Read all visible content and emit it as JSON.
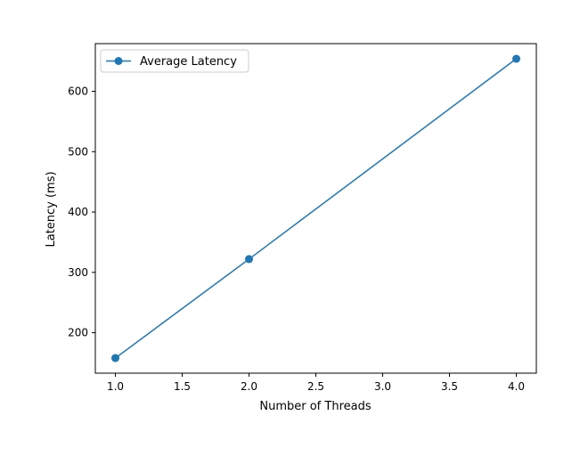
{
  "chart_data": {
    "type": "line",
    "x": [
      1.0,
      2.0,
      4.0
    ],
    "series": [
      {
        "name": "Average Latency",
        "values": [
          158,
          322,
          654
        ],
        "color": "#1f77b4",
        "marker": "circle"
      }
    ],
    "xlabel": "Number of Threads",
    "ylabel": "Latency (ms)",
    "xlim": [
      0.85,
      4.15
    ],
    "ylim": [
      133,
      679
    ],
    "xticks": [
      1.0,
      1.5,
      2.0,
      2.5,
      3.0,
      3.5,
      4.0
    ],
    "xtick_labels": [
      "1.0",
      "1.5",
      "2.0",
      "2.5",
      "3.0",
      "3.5",
      "4.0"
    ],
    "yticks": [
      200,
      300,
      400,
      500,
      600
    ],
    "ytick_labels": [
      "200",
      "300",
      "400",
      "500",
      "600"
    ],
    "grid": false,
    "legend_position": "top-left"
  }
}
